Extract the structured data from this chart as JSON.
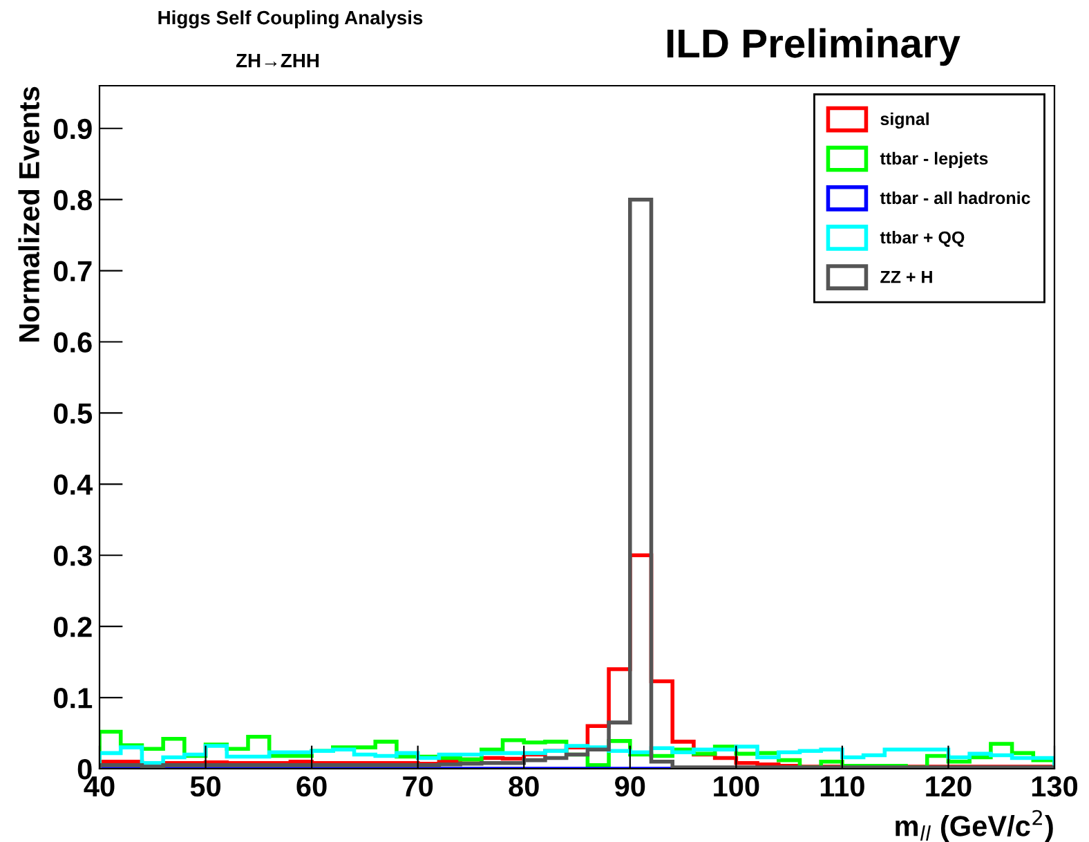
{
  "chart_data": {
    "type": "histogram",
    "title": "Higgs Self Coupling Analysis",
    "subtitle": "ZH→ZHH",
    "annotations": [
      "ILD Preliminary"
    ],
    "xlabel": "m$_{ll}$ (GeV/c$^{2}$)",
    "ylabel": "Normalized Events",
    "bins": [
      40,
      42,
      44,
      46,
      48,
      50,
      52,
      54,
      56,
      58,
      60,
      62,
      64,
      66,
      68,
      70,
      72,
      74,
      76,
      78,
      80,
      82,
      84,
      86,
      88,
      90,
      92,
      94,
      96,
      98,
      100,
      102,
      104,
      106,
      108,
      110,
      112,
      114,
      116,
      118,
      120,
      122,
      124,
      126,
      128,
      130
    ],
    "series": [
      {
        "name": "signal",
        "color": "#ff0000",
        "values": [
          0.01,
          0.01,
          0.007,
          0.008,
          0.008,
          0.009,
          0.008,
          0.008,
          0.008,
          0.01,
          0.008,
          0.008,
          0.008,
          0.008,
          0.008,
          0.007,
          0.01,
          0.013,
          0.015,
          0.014,
          0.02,
          0.025,
          0.03,
          0.06,
          0.14,
          0.3,
          0.123,
          0.038,
          0.02,
          0.015,
          0.008,
          0.006,
          0.004,
          0.003,
          0.003,
          0.003,
          0.003,
          0.003,
          0.003,
          0.003,
          0.003,
          0.003,
          0.003,
          0.003,
          0.003
        ]
      },
      {
        "name": "ttbar - lepjets",
        "color": "#00ff00",
        "values": [
          0.052,
          0.033,
          0.028,
          0.042,
          0.018,
          0.034,
          0.028,
          0.045,
          0.018,
          0.018,
          0.025,
          0.03,
          0.03,
          0.038,
          0.017,
          0.017,
          0.015,
          0.013,
          0.027,
          0.04,
          0.037,
          0.038,
          0.02,
          0.005,
          0.039,
          0.02,
          0.018,
          0.027,
          0.021,
          0.031,
          0.021,
          0.022,
          0.012,
          0.002,
          0.01,
          0.004,
          0.004,
          0.004,
          0.002,
          0.018,
          0.01,
          0.016,
          0.035,
          0.022,
          0.012
        ]
      },
      {
        "name": "ttbar - all hadronic",
        "color": "#0000ff",
        "values": [
          0,
          0,
          0,
          0,
          0,
          0,
          0,
          0,
          0,
          0,
          0,
          0,
          0,
          0,
          0,
          0,
          0,
          0,
          0,
          0,
          0,
          0,
          0,
          0,
          0,
          0,
          0,
          0,
          0,
          0,
          0,
          0,
          0,
          0,
          0,
          0,
          0,
          0,
          0,
          0,
          0,
          0,
          0,
          0,
          0
        ]
      },
      {
        "name": "ttbar + QQ",
        "color": "#00ffff",
        "values": [
          0.022,
          0.03,
          0.008,
          0.016,
          0.02,
          0.032,
          0.017,
          0.017,
          0.023,
          0.023,
          0.025,
          0.027,
          0.02,
          0.018,
          0.022,
          0.015,
          0.02,
          0.02,
          0.022,
          0.022,
          0.022,
          0.025,
          0.032,
          0.03,
          0.025,
          0.023,
          0.029,
          0.023,
          0.027,
          0.027,
          0.031,
          0.016,
          0.023,
          0.025,
          0.027,
          0.016,
          0.019,
          0.027,
          0.027,
          0.027,
          0.016,
          0.021,
          0.019,
          0.015,
          0.015
        ]
      },
      {
        "name": "ZZ + H",
        "color": "#555555",
        "values": [
          0.005,
          0.005,
          0.003,
          0.005,
          0.005,
          0.005,
          0.005,
          0.005,
          0.005,
          0.005,
          0.005,
          0.005,
          0.005,
          0.005,
          0.005,
          0.005,
          0.006,
          0.007,
          0.008,
          0.008,
          0.012,
          0.015,
          0.02,
          0.027,
          0.065,
          0.8,
          0.01,
          0.002,
          0.002,
          0.002,
          0.002,
          0.002,
          0.002,
          0.002,
          0.002,
          0.002,
          0.002,
          0.002,
          0.002,
          0.002,
          0.002,
          0.002,
          0.002,
          0.002,
          0.002
        ]
      }
    ],
    "xlim": [
      40,
      130
    ],
    "xticks": [
      40,
      50,
      60,
      70,
      80,
      90,
      100,
      110,
      120,
      130
    ],
    "ylim": [
      0,
      0.96
    ],
    "yticks": [
      0,
      0.1,
      0.2,
      0.3,
      0.4,
      0.5,
      0.6,
      0.7,
      0.8,
      0.9
    ],
    "legend": "top right",
    "grid": false
  }
}
